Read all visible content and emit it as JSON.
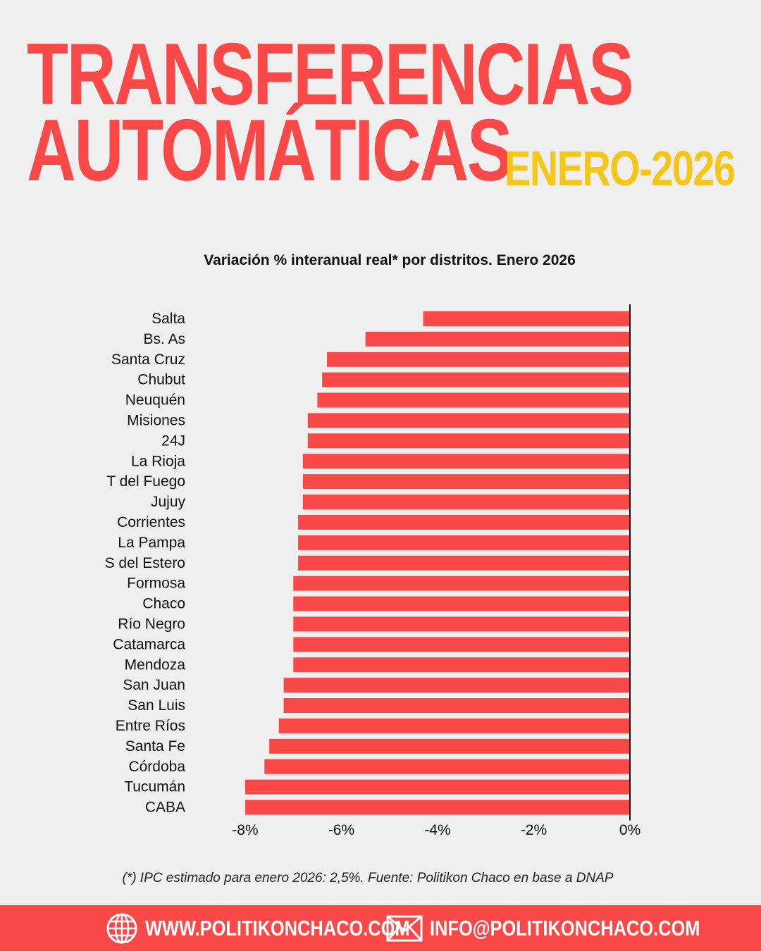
{
  "header": {
    "title_line1": "TRANSFERENCIAS",
    "title_line2": "AUTOMÁTICAS",
    "date_tag": "ENERO-2026"
  },
  "colors": {
    "accent": "#f94848",
    "highlight": "#f5c518",
    "background": "#efefef"
  },
  "chart_data": {
    "type": "bar",
    "orientation": "horizontal",
    "title": "Variación % interanual real* por distritos. Enero 2026",
    "categories": [
      "Salta",
      "Bs. As",
      "Santa Cruz",
      "Chubut",
      "Neuquén",
      "Misiones",
      "24J",
      "La Rioja",
      "T del Fuego",
      "Jujuy",
      "Corrientes",
      "La Pampa",
      "S del Estero",
      "Formosa",
      "Chaco",
      "Río Negro",
      "Catamarca",
      "Mendoza",
      "San Juan",
      "San Luis",
      "Entre Ríos",
      "Santa Fe",
      "Córdoba",
      "Tucumán",
      "CABA"
    ],
    "values": [
      -4.3,
      -5.5,
      -6.3,
      -6.4,
      -6.5,
      -6.7,
      -6.7,
      -6.8,
      -6.8,
      -6.8,
      -6.9,
      -6.9,
      -6.9,
      -7.0,
      -7.0,
      -7.0,
      -7.0,
      -7.0,
      -7.2,
      -7.2,
      -7.3,
      -7.5,
      -7.6,
      -8.0,
      -8.0
    ],
    "xlim": [
      -8,
      0
    ],
    "xticks": [
      -8,
      -6,
      -4,
      -2,
      0
    ],
    "xtick_labels": [
      "-8%",
      "-6%",
      "-4%",
      "-2%",
      "0%"
    ],
    "bar_color": "#f94848",
    "grid": false
  },
  "footnote": "(*) IPC estimado para enero 2026: 2,5%. Fuente: Politikon Chaco en base a DNAP",
  "footer": {
    "website": "WWW.POLITIKONCHACO.COM",
    "email": "INFO@POLITIKONCHACO.COM",
    "website_icon": "globe-icon",
    "email_icon": "envelope-icon"
  }
}
